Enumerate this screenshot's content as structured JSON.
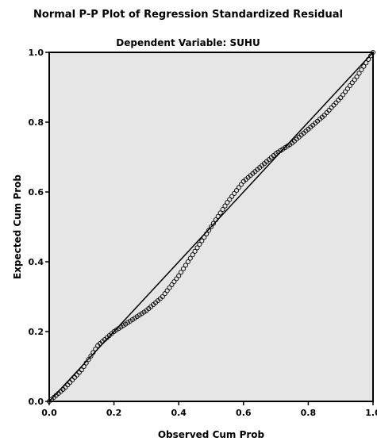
{
  "chart_data": {
    "type": "scatter",
    "title": "Normal P-P Plot of Regression Standardized Residual",
    "subtitle": "Dependent Variable: SUHU",
    "xlabel": "Observed Cum Prob",
    "ylabel": "Expected Cum Prob",
    "xlim": [
      0.0,
      1.0
    ],
    "ylim": [
      0.0,
      1.0
    ],
    "xticks": [
      "0.0",
      "0.2",
      "0.4",
      "0.6",
      "0.8",
      "1.0"
    ],
    "yticks": [
      "0.0",
      "0.2",
      "0.4",
      "0.6",
      "0.8",
      "1.0"
    ],
    "reference_line": {
      "from": [
        0.0,
        0.0
      ],
      "to": [
        1.0,
        1.0
      ]
    },
    "grid": false,
    "plot_background": "#e6e6e6",
    "marker_color": "#000000",
    "line_color": "#000000",
    "curve_anchors": [
      [
        0.0,
        0.0
      ],
      [
        0.05,
        0.04
      ],
      [
        0.1,
        0.09
      ],
      [
        0.15,
        0.16
      ],
      [
        0.2,
        0.2
      ],
      [
        0.25,
        0.23
      ],
      [
        0.3,
        0.26
      ],
      [
        0.35,
        0.3
      ],
      [
        0.4,
        0.36
      ],
      [
        0.45,
        0.43
      ],
      [
        0.5,
        0.5
      ],
      [
        0.55,
        0.57
      ],
      [
        0.6,
        0.63
      ],
      [
        0.65,
        0.67
      ],
      [
        0.7,
        0.71
      ],
      [
        0.75,
        0.74
      ],
      [
        0.8,
        0.78
      ],
      [
        0.85,
        0.82
      ],
      [
        0.9,
        0.87
      ],
      [
        0.95,
        0.93
      ],
      [
        1.0,
        1.0
      ]
    ]
  }
}
